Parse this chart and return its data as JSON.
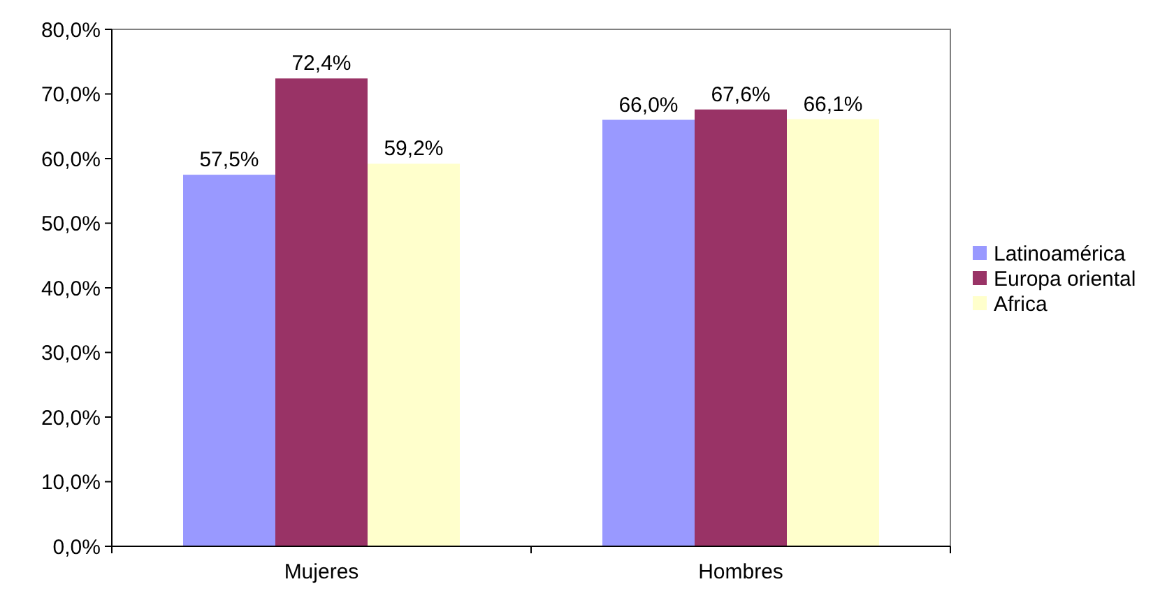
{
  "chart_data": {
    "type": "bar",
    "categories": [
      "Mujeres",
      "Hombres"
    ],
    "series": [
      {
        "name": "Latinoamérica",
        "color": "#9999ff",
        "values": [
          57.5,
          66.0
        ]
      },
      {
        "name": "Europa oriental",
        "color": "#993366",
        "values": [
          72.4,
          67.6
        ]
      },
      {
        "name": "Africa",
        "color": "#ffffcc",
        "values": [
          59.2,
          66.1
        ]
      }
    ],
    "value_labels": [
      [
        "57,5%",
        "66,0%"
      ],
      [
        "72,4%",
        "67,6%"
      ],
      [
        "59,2%",
        "66,1%"
      ]
    ],
    "ylim": [
      0,
      80
    ],
    "yticks": [
      {
        "value": 0,
        "label": "0,0%"
      },
      {
        "value": 10,
        "label": "10,0%"
      },
      {
        "value": 20,
        "label": "20,0%"
      },
      {
        "value": 30,
        "label": "30,0%"
      },
      {
        "value": 40,
        "label": "40,0%"
      },
      {
        "value": 50,
        "label": "50,0%"
      },
      {
        "value": 60,
        "label": "60,0%"
      },
      {
        "value": 70,
        "label": "70,0%"
      },
      {
        "value": 80,
        "label": "80,0%"
      }
    ],
    "grid": false,
    "legend": "right"
  }
}
